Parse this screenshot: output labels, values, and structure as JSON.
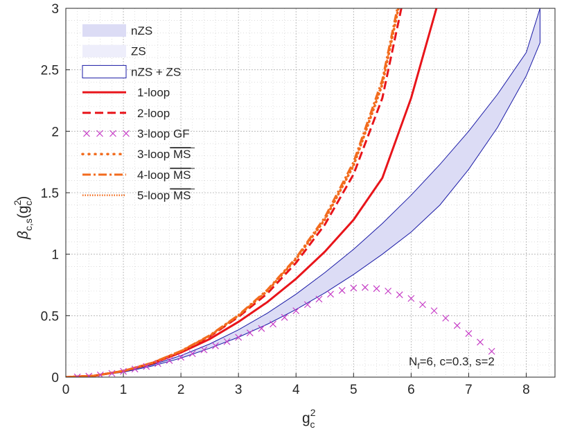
{
  "chart_data": {
    "type": "line",
    "title": "",
    "xlabel": {
      "base": "g",
      "sup": "2",
      "sub": "c"
    },
    "ylabel": {
      "beta": "β",
      "sub": "c,s",
      "open": "(g",
      "sup": "2",
      "sub2": "c",
      "close": ")"
    },
    "xlim": [
      0,
      8.5
    ],
    "ylim": [
      0,
      3
    ],
    "xticks": [
      0,
      1,
      2,
      3,
      4,
      5,
      6,
      7,
      8
    ],
    "yticks": [
      0,
      0.5,
      1,
      1.5,
      2,
      2.5,
      3
    ],
    "grid": true,
    "annotation": {
      "pre": "N",
      "sub": "f",
      "post": "=6, c=0.3, s=2"
    },
    "colors": {
      "band": "#dcdcf5",
      "band_light": "#eeeefb",
      "band_edge": "#1a1aa6",
      "loop1": "#e8141a",
      "msbar": "#f26b1d",
      "gf": "#c63cc6",
      "grid": "#c8c8c8",
      "axis": "#262626"
    },
    "legend": {
      "position": "top-left",
      "items": [
        {
          "label": "nZS",
          "style": "band"
        },
        {
          "label": "ZS",
          "style": "band-light"
        },
        {
          "label": "nZS + ZS",
          "style": "band-outline"
        },
        {
          "label": "1-loop",
          "style": "solid-red"
        },
        {
          "label": "2-loop",
          "style": "dashed-red"
        },
        {
          "label": "3-loop GF",
          "style": "x-magenta"
        },
        {
          "label": "3-loop",
          "label_overline": "MS",
          "style": "dotted-orange"
        },
        {
          "label": "4-loop",
          "label_overline": "MS",
          "style": "dashdot-orange"
        },
        {
          "label": "5-loop",
          "label_overline": "MS",
          "style": "fine-dotted-orange"
        }
      ]
    },
    "series": [
      {
        "name": "nZS + ZS upper",
        "x": [
          0,
          0.5,
          1,
          1.5,
          2,
          2.5,
          3,
          3.5,
          4,
          4.5,
          5,
          5.5,
          6,
          6.5,
          7,
          7.5,
          8,
          8.24
        ],
        "y": [
          0,
          0.012,
          0.045,
          0.1,
          0.175,
          0.27,
          0.385,
          0.52,
          0.675,
          0.85,
          1.04,
          1.25,
          1.48,
          1.73,
          2.0,
          2.3,
          2.64,
          3.0
        ]
      },
      {
        "name": "nZS + ZS lower",
        "x": [
          0,
          0.5,
          1,
          1.5,
          2,
          2.5,
          3,
          3.5,
          4,
          4.5,
          5,
          5.5,
          6,
          6.5,
          7,
          7.5,
          8,
          8.24
        ],
        "y": [
          0,
          0.01,
          0.04,
          0.09,
          0.155,
          0.235,
          0.325,
          0.43,
          0.55,
          0.685,
          0.835,
          1.0,
          1.18,
          1.4,
          1.69,
          2.03,
          2.45,
          2.72
        ]
      },
      {
        "name": "1-loop",
        "x": [
          0,
          0.5,
          1,
          1.5,
          2,
          2.5,
          3,
          3.5,
          4,
          4.5,
          5,
          5.5,
          6,
          6.44
        ],
        "y": [
          0,
          0.012,
          0.05,
          0.11,
          0.2,
          0.31,
          0.45,
          0.61,
          0.8,
          1.02,
          1.28,
          1.62,
          2.27,
          3.0
        ]
      },
      {
        "name": "2-loop",
        "x": [
          0,
          0.5,
          1,
          1.5,
          2,
          2.5,
          3,
          3.5,
          4,
          4.5,
          5,
          5.5,
          5.83
        ],
        "y": [
          0,
          0.012,
          0.05,
          0.115,
          0.21,
          0.33,
          0.49,
          0.68,
          0.93,
          1.24,
          1.65,
          2.27,
          3.0
        ]
      },
      {
        "name": "3-loop GF",
        "x": [
          0.2,
          0.4,
          0.6,
          0.8,
          1.0,
          1.2,
          1.4,
          1.6,
          1.8,
          2.0,
          2.2,
          2.4,
          2.6,
          2.8,
          3.0,
          3.2,
          3.4,
          3.6,
          3.8,
          4.0,
          4.2,
          4.4,
          4.6,
          4.8,
          5.0,
          5.2,
          5.4,
          5.6,
          5.8,
          6.0,
          6.2,
          6.4,
          6.6,
          6.8,
          7.0,
          7.2,
          7.4
        ],
        "y": [
          0.002,
          0.008,
          0.018,
          0.031,
          0.047,
          0.066,
          0.087,
          0.11,
          0.135,
          0.162,
          0.191,
          0.222,
          0.255,
          0.289,
          0.324,
          0.36,
          0.396,
          0.432,
          0.486,
          0.54,
          0.59,
          0.635,
          0.675,
          0.705,
          0.725,
          0.73,
          0.72,
          0.7,
          0.67,
          0.64,
          0.59,
          0.54,
          0.48,
          0.42,
          0.355,
          0.285,
          0.21
        ]
      },
      {
        "name": "3-loop MS",
        "x": [
          0,
          0.5,
          1,
          1.5,
          2,
          2.5,
          3,
          3.5,
          4,
          4.5,
          5,
          5.5,
          5.78
        ],
        "y": [
          0,
          0.012,
          0.05,
          0.115,
          0.21,
          0.335,
          0.5,
          0.7,
          0.96,
          1.28,
          1.72,
          2.38,
          3.0
        ]
      },
      {
        "name": "4-loop MS",
        "x": [
          0,
          0.5,
          1,
          1.5,
          2,
          2.5,
          3,
          3.5,
          4,
          4.5,
          5,
          5.5,
          5.76
        ],
        "y": [
          0,
          0.012,
          0.05,
          0.117,
          0.213,
          0.34,
          0.505,
          0.71,
          0.97,
          1.3,
          1.75,
          2.42,
          3.0
        ]
      },
      {
        "name": "5-loop MS",
        "x": [
          0,
          0.5,
          1,
          1.5,
          2,
          2.5,
          3,
          3.5,
          4,
          4.5,
          5,
          5.5,
          5.77
        ],
        "y": [
          0,
          0.012,
          0.05,
          0.116,
          0.212,
          0.338,
          0.502,
          0.705,
          0.965,
          1.29,
          1.73,
          2.4,
          3.0
        ]
      }
    ]
  }
}
